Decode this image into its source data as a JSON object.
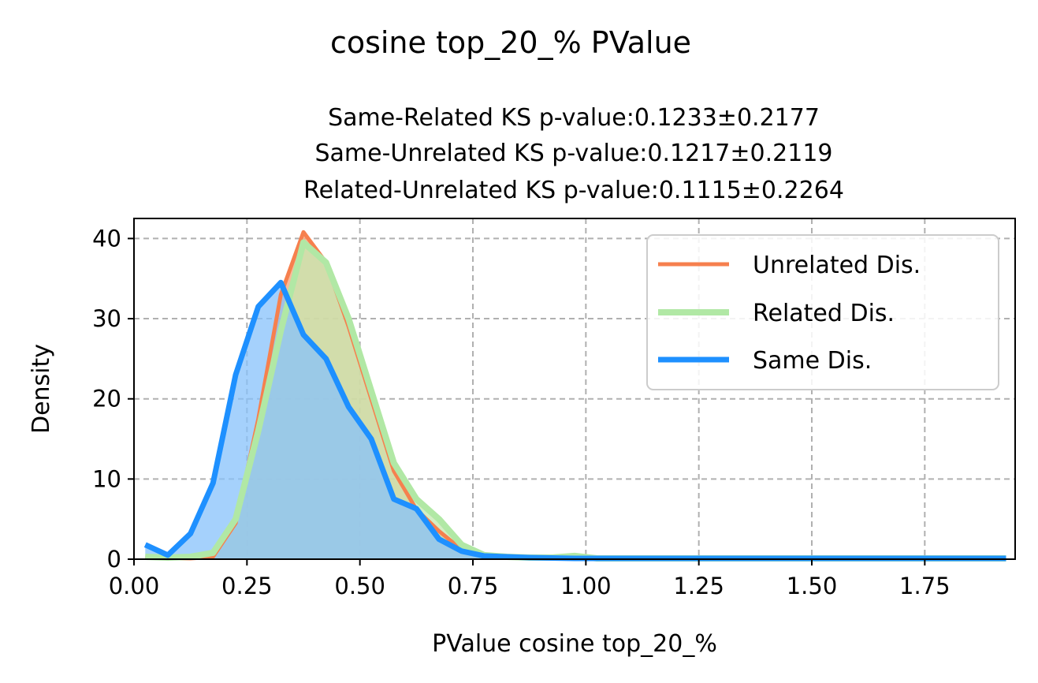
{
  "chart_data": {
    "type": "area",
    "suptitle": "cosine top_20_% PValue",
    "title_lines": [
      "Same-Related KS p-value:0.1233±0.2177",
      "Same-Unrelated KS p-value:0.1217±0.2119",
      "Related-Unrelated KS p-value:0.1115±0.2264"
    ],
    "xlabel": "PValue cosine top_20_%",
    "ylabel": "Density",
    "xlim": [
      0.0,
      1.95
    ],
    "ylim": [
      0,
      42.5
    ],
    "xticks": [
      0.0,
      0.25,
      0.5,
      0.75,
      1.0,
      1.25,
      1.5,
      1.75
    ],
    "xtick_labels": [
      "0.00",
      "0.25",
      "0.50",
      "0.75",
      "1.00",
      "1.25",
      "1.50",
      "1.75"
    ],
    "yticks": [
      0,
      10,
      20,
      30,
      40
    ],
    "ytick_labels": [
      "0",
      "10",
      "20",
      "30",
      "40"
    ],
    "grid": true,
    "legend_position": "upper right",
    "series": [
      {
        "name": "Unrelated Dis.",
        "line_color": "#f6804e",
        "fill_color": "#f6a57a",
        "line_width": 5,
        "x": [
          0.025,
          0.075,
          0.125,
          0.175,
          0.225,
          0.275,
          0.325,
          0.375,
          0.425,
          0.475,
          0.525,
          0.575,
          0.625,
          0.675,
          0.725,
          0.775,
          0.825,
          0.875,
          0.925,
          0.975,
          1.025,
          1.1,
          1.3,
          1.5,
          1.7,
          1.93
        ],
        "y": [
          0.2,
          0.1,
          0.1,
          0.3,
          4.5,
          17.5,
          33.0,
          40.8,
          37.0,
          29.0,
          20.0,
          11.0,
          6.2,
          3.5,
          1.2,
          0.4,
          0.25,
          0.2,
          0.15,
          0.15,
          0.1,
          0.1,
          0.1,
          0.1,
          0.1,
          0.1
        ]
      },
      {
        "name": "Related Dis.",
        "line_color": "#b1e8a5",
        "fill_color": "#c5e8b0",
        "line_width": 8,
        "x": [
          0.025,
          0.075,
          0.125,
          0.175,
          0.225,
          0.275,
          0.325,
          0.375,
          0.425,
          0.475,
          0.525,
          0.575,
          0.625,
          0.675,
          0.725,
          0.775,
          0.825,
          0.875,
          0.925,
          0.975,
          1.025,
          1.1,
          1.3,
          1.5,
          1.7,
          1.93
        ],
        "y": [
          0.3,
          0.2,
          0.3,
          0.8,
          5.0,
          16.0,
          28.5,
          39.5,
          37.0,
          30.0,
          21.0,
          12.0,
          7.5,
          5.0,
          1.8,
          0.5,
          0.3,
          0.2,
          0.2,
          0.4,
          0.1,
          0.1,
          0.1,
          0.1,
          0.1,
          0.1
        ]
      },
      {
        "name": "Same Dis.",
        "line_color": "#1e90ff",
        "fill_color": "#87c1fb",
        "line_width": 7,
        "x": [
          0.025,
          0.075,
          0.125,
          0.175,
          0.225,
          0.275,
          0.325,
          0.375,
          0.425,
          0.475,
          0.525,
          0.575,
          0.625,
          0.675,
          0.725,
          0.775,
          0.825,
          0.875,
          0.925,
          0.975,
          1.025,
          1.1,
          1.3,
          1.5,
          1.7,
          1.93
        ],
        "y": [
          1.8,
          0.5,
          3.2,
          9.5,
          23.0,
          31.5,
          34.5,
          28.0,
          25.0,
          19.0,
          15.0,
          7.5,
          6.3,
          2.5,
          1.0,
          0.4,
          0.3,
          0.2,
          0.15,
          0.1,
          0.1,
          0.1,
          0.1,
          0.1,
          0.1,
          0.1
        ]
      }
    ]
  }
}
